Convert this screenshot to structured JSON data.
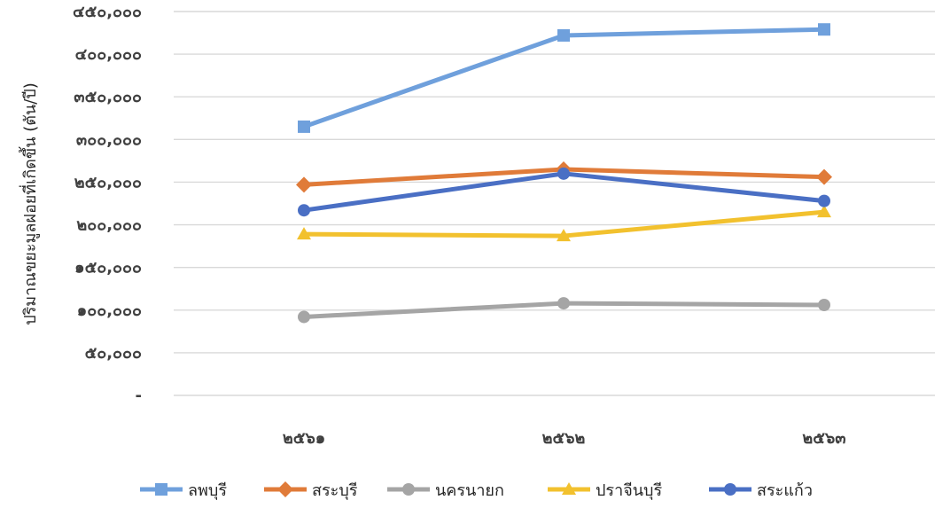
{
  "chart_data": {
    "type": "line",
    "ylabel": "ปริมาณขยะมูลฝอยที่เกิดขึ้น (ตัน/ปี)",
    "categories": [
      "๒๕๖๑",
      "๒๕๖๒",
      "๒๕๖๓"
    ],
    "ylim": [
      0,
      450000
    ],
    "yticks": [
      {
        "value": 0,
        "label": "-"
      },
      {
        "value": 50000,
        "label": "๕๐,๐๐๐"
      },
      {
        "value": 100000,
        "label": "๑๐๐,๐๐๐"
      },
      {
        "value": 150000,
        "label": "๑๕๐,๐๐๐"
      },
      {
        "value": 200000,
        "label": "๒๐๐,๐๐๐"
      },
      {
        "value": 250000,
        "label": "๒๕๐,๐๐๐"
      },
      {
        "value": 300000,
        "label": "๓๐๐,๐๐๐"
      },
      {
        "value": 350000,
        "label": "๓๕๐,๐๐๐"
      },
      {
        "value": 400000,
        "label": "๔๐๐,๐๐๐"
      },
      {
        "value": 450000,
        "label": "๔๕๐,๐๐๐"
      }
    ],
    "grid": true,
    "legend_position": "bottom",
    "series": [
      {
        "name": "ลพบุรี",
        "color": "#6fa0dc",
        "marker": "square",
        "values": [
          315000,
          422000,
          429000
        ]
      },
      {
        "name": "สระบุรี",
        "color": "#e07b39",
        "marker": "diamond",
        "values": [
          247000,
          265000,
          256000
        ]
      },
      {
        "name": "นครนายก",
        "color": "#a5a5a5",
        "marker": "circle",
        "values": [
          92000,
          108000,
          106000
        ]
      },
      {
        "name": "ปราจีนบุรี",
        "color": "#f2c12e",
        "marker": "triangle",
        "values": [
          189000,
          187000,
          215000
        ]
      },
      {
        "name": "สระแก้ว",
        "color": "#4a6fc4",
        "marker": "circle",
        "values": [
          217000,
          260000,
          228000
        ]
      }
    ]
  }
}
